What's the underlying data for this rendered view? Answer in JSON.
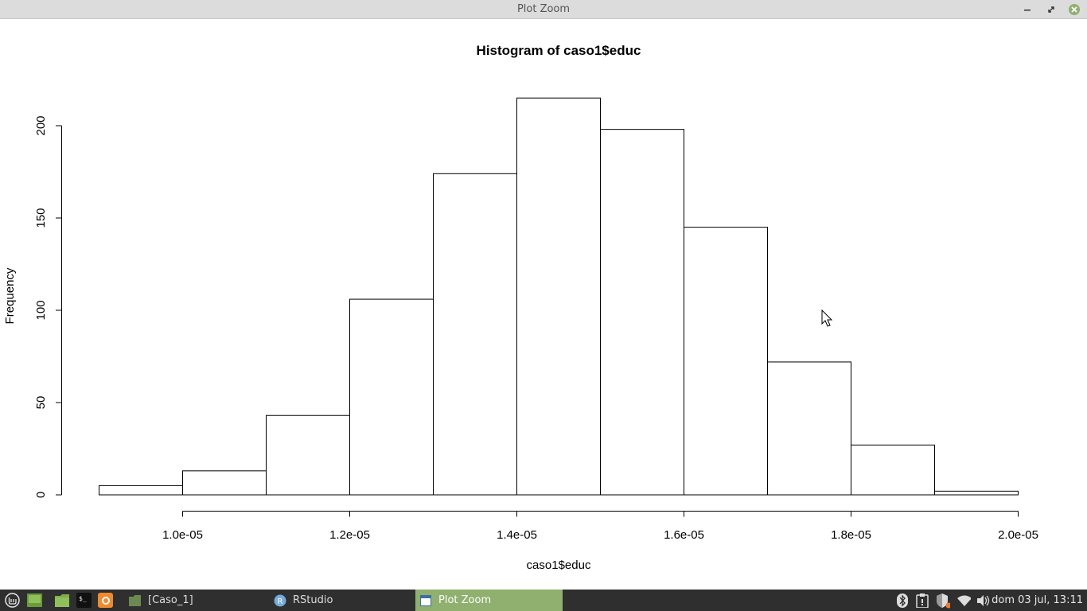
{
  "window": {
    "title": "Plot Zoom"
  },
  "chart_data": {
    "type": "bar",
    "title": "Histogram of caso1$educ",
    "xlabel": "caso1$educ",
    "ylabel": "Frequency",
    "bin_edges": [
      9e-06,
      1e-05,
      1.1e-05,
      1.2e-05,
      1.3e-05,
      1.4e-05,
      1.5e-05,
      1.6e-05,
      1.7e-05,
      1.8e-05,
      1.9e-05,
      2e-05
    ],
    "values": [
      5,
      13,
      43,
      106,
      174,
      215,
      198,
      145,
      72,
      27,
      2
    ],
    "xlim": [
      9e-06,
      2e-05
    ],
    "ylim": [
      0,
      215
    ],
    "x_ticks": [
      1e-05,
      1.2e-05,
      1.4e-05,
      1.6e-05,
      1.8e-05,
      2e-05
    ],
    "x_tick_labels": [
      "1.0e-05",
      "1.2e-05",
      "1.4e-05",
      "1.6e-05",
      "1.8e-05",
      "2.0e-05"
    ],
    "y_ticks": [
      0,
      50,
      100,
      150,
      200
    ],
    "y_tick_labels": [
      "0",
      "50",
      "100",
      "150",
      "200"
    ],
    "fill_color": "#ffffff",
    "stroke_color": "#000000",
    "grid": false
  },
  "taskbar": {
    "windows": [
      {
        "label": "[Caso_1]",
        "icon": "folder-icon"
      },
      {
        "label": "RStudio",
        "icon": "rstudio-icon"
      },
      {
        "label": "Plot Zoom",
        "icon": "window-icon",
        "active": true
      }
    ],
    "clock": "dom 03 jul, 13:11",
    "active_color": "#8fb06e"
  }
}
